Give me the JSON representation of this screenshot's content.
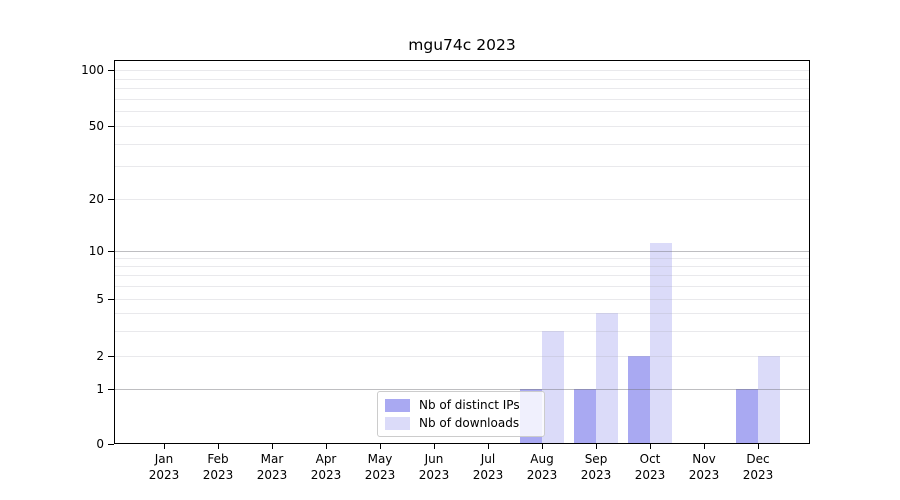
{
  "chart_data": {
    "type": "bar",
    "title": "mgu74c 2023",
    "categories": [
      "Jan",
      "Feb",
      "Mar",
      "Apr",
      "May",
      "Jun",
      "Jul",
      "Aug",
      "Sep",
      "Oct",
      "Nov",
      "Dec"
    ],
    "category_year": "2023",
    "series": [
      {
        "name": "Nb of distinct IPs",
        "color": "#a9a9f2",
        "values": [
          0,
          0,
          0,
          0,
          0,
          0,
          0,
          1,
          1,
          2,
          0,
          1
        ]
      },
      {
        "name": "Nb of downloads",
        "color": "#dbdbf9",
        "values": [
          0,
          0,
          0,
          0,
          0,
          0,
          0,
          3,
          4,
          11,
          0,
          2
        ]
      }
    ],
    "y_axis": {
      "scale": "symlog",
      "tick_values": [
        0,
        1,
        2,
        5,
        10,
        20,
        50,
        100
      ],
      "tick_labels": [
        "0",
        "1",
        "2",
        "5",
        "10",
        "20",
        "50",
        "100"
      ],
      "major_gridlines": [
        1,
        10
      ],
      "minor_gridlines": [
        2,
        3,
        4,
        5,
        6,
        7,
        8,
        9,
        20,
        30,
        40,
        50,
        60,
        70,
        80,
        90,
        100
      ]
    },
    "xlabel": "",
    "ylabel": "",
    "ylim": [
      0,
      115
    ],
    "grid": true,
    "legend": {
      "position": "inside-bottom-center"
    },
    "colors": {
      "background": "#ffffff",
      "axis": "#000000",
      "grid_major": "#c6c6c6",
      "grid_minor": "#ececec"
    }
  }
}
